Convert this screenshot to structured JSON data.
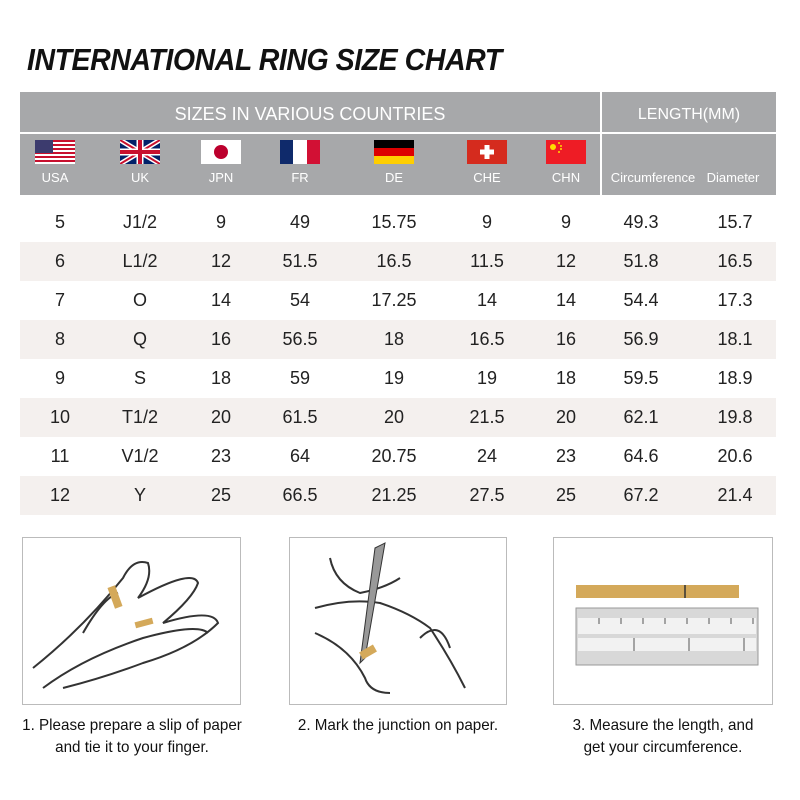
{
  "title": "INTERNATIONAL RING SIZE CHART",
  "header": {
    "sizes_label": "SIZES IN VARIOUS COUNTRIES",
    "length_label": "LENGTH(MM)",
    "columns": [
      "USA",
      "UK",
      "JPN",
      "FR",
      "DE",
      "CHE",
      "CHN",
      "Circumference",
      "Diameter"
    ]
  },
  "flags": [
    "usa-flag",
    "uk-flag",
    "japan-flag",
    "france-flag",
    "germany-flag",
    "switzerland-flag",
    "china-flag"
  ],
  "rows": [
    [
      "5",
      "J1/2",
      "9",
      "49",
      "15.75",
      "9",
      "9",
      "49.3",
      "15.7"
    ],
    [
      "6",
      "L1/2",
      "12",
      "51.5",
      "16.5",
      "11.5",
      "12",
      "51.8",
      "16.5"
    ],
    [
      "7",
      "O",
      "14",
      "54",
      "17.25",
      "14",
      "14",
      "54.4",
      "17.3"
    ],
    [
      "8",
      "Q",
      "16",
      "56.5",
      "18",
      "16.5",
      "16",
      "56.9",
      "18.1"
    ],
    [
      "9",
      "S",
      "18",
      "59",
      "19",
      "19",
      "18",
      "59.5",
      "18.9"
    ],
    [
      "10",
      "T1/2",
      "20",
      "61.5",
      "20",
      "21.5",
      "20",
      "62.1",
      "19.8"
    ],
    [
      "11",
      "V1/2",
      "23",
      "64",
      "20.75",
      "24",
      "23",
      "64.6",
      "20.6"
    ],
    [
      "12",
      "Y",
      "25",
      "66.5",
      "21.25",
      "27.5",
      "25",
      "67.2",
      "21.4"
    ]
  ],
  "steps": [
    {
      "line1": "1. Please prepare a slip of paper",
      "line2": "and tie it to your finger."
    },
    {
      "line1": "2. Mark the junction on paper.",
      "line2": ""
    },
    {
      "line1": "3. Measure the length, and",
      "line2": "get your circumference."
    }
  ],
  "colors": {
    "header_bg": "#a7a8aa",
    "alt_row": "#f4f0ee",
    "paper_strip": "#d4a95a"
  }
}
